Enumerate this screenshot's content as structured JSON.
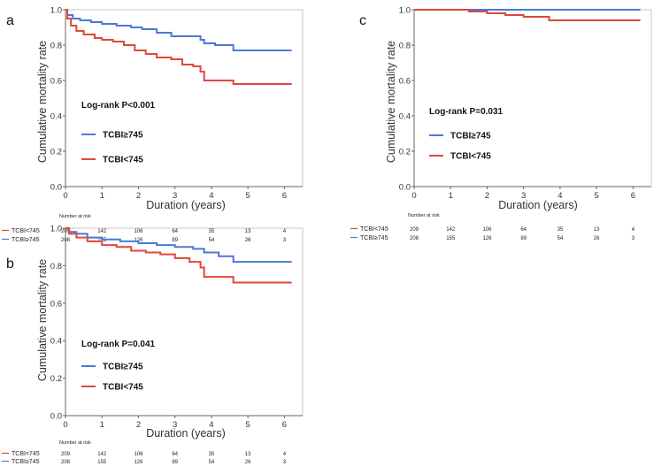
{
  "chart_data": [
    {
      "id": "a",
      "type": "line",
      "panel_label": "a",
      "xlabel": "Duration (years)",
      "ylabel": "Cumulative mortality rate",
      "xlim": [
        0,
        6.5
      ],
      "ylim": [
        0,
        1.0
      ],
      "xticks": [
        "0",
        "1",
        "2",
        "3",
        "4",
        "5",
        "6"
      ],
      "yticks": [
        "0.0",
        "0.2",
        "0.4",
        "0.6",
        "0.8",
        "1.0"
      ],
      "logrank": "Log-rank P<0.001",
      "series": [
        {
          "name": "TCBI≥745",
          "color": "#4a78d8",
          "x": [
            0,
            0.05,
            0.2,
            0.4,
            0.7,
            1.0,
            1.4,
            1.8,
            2.1,
            2.5,
            2.9,
            3.3,
            3.7,
            3.8,
            4.1,
            4.6,
            5.0,
            6.2
          ],
          "y": [
            1.0,
            0.97,
            0.95,
            0.94,
            0.93,
            0.92,
            0.91,
            0.9,
            0.89,
            0.87,
            0.85,
            0.85,
            0.83,
            0.81,
            0.8,
            0.77,
            0.77,
            0.77
          ]
        },
        {
          "name": "TCBI<745",
          "color": "#e0473a",
          "x": [
            0,
            0.05,
            0.15,
            0.3,
            0.5,
            0.8,
            1.0,
            1.3,
            1.6,
            1.9,
            2.2,
            2.5,
            2.9,
            3.2,
            3.5,
            3.7,
            3.8,
            4.2,
            4.6,
            5.0,
            6.2
          ],
          "y": [
            1.0,
            0.95,
            0.91,
            0.88,
            0.86,
            0.84,
            0.83,
            0.82,
            0.8,
            0.77,
            0.75,
            0.73,
            0.72,
            0.69,
            0.68,
            0.65,
            0.6,
            0.6,
            0.58,
            0.58,
            0.58
          ]
        }
      ],
      "risk_table": {
        "title": "Number at risk",
        "rows": [
          {
            "label": "TCBI<745",
            "color": "#e0473a",
            "values": [
              "209",
              "142",
              "106",
              "64",
              "35",
              "13",
              "4"
            ]
          },
          {
            "label": "TCBI≥745",
            "color": "#4a78d8",
            "values": [
              "208",
              "155",
              "126",
              "89",
              "54",
              "26",
              "3"
            ]
          }
        ]
      }
    },
    {
      "id": "b",
      "type": "line",
      "panel_label": "b",
      "xlabel": "Duration (years)",
      "ylabel": "Cumulative mortality rate",
      "xlim": [
        0,
        6.5
      ],
      "ylim": [
        0,
        1.0
      ],
      "xticks": [
        "0",
        "1",
        "2",
        "3",
        "4",
        "5",
        "6"
      ],
      "yticks": [
        "0.0",
        "0.2",
        "0.4",
        "0.6",
        "0.8",
        "1.0"
      ],
      "logrank": "Log-rank P=0.041",
      "series": [
        {
          "name": "TCBI≥745",
          "color": "#4a78d8",
          "x": [
            0,
            0.1,
            0.3,
            0.6,
            1.0,
            1.5,
            2.0,
            2.5,
            3.0,
            3.5,
            3.8,
            4.2,
            4.6,
            5.0,
            6.2
          ],
          "y": [
            1.0,
            0.98,
            0.97,
            0.95,
            0.94,
            0.93,
            0.92,
            0.91,
            0.9,
            0.89,
            0.87,
            0.85,
            0.82,
            0.82,
            0.82
          ]
        },
        {
          "name": "TCBI<745",
          "color": "#e0473a",
          "x": [
            0,
            0.1,
            0.3,
            0.6,
            1.0,
            1.4,
            1.8,
            2.2,
            2.6,
            3.0,
            3.4,
            3.7,
            3.8,
            4.2,
            4.6,
            5.0,
            6.2
          ],
          "y": [
            1.0,
            0.97,
            0.95,
            0.93,
            0.91,
            0.9,
            0.88,
            0.87,
            0.86,
            0.84,
            0.82,
            0.79,
            0.74,
            0.74,
            0.71,
            0.71,
            0.71
          ]
        }
      ],
      "risk_table": {
        "title": "Number at risk",
        "rows": [
          {
            "label": "TCBI<745",
            "color": "#e0473a",
            "values": [
              "209",
              "142",
              "106",
              "64",
              "35",
              "13",
              "4"
            ]
          },
          {
            "label": "TCBI≥745",
            "color": "#4a78d8",
            "values": [
              "208",
              "155",
              "126",
              "89",
              "54",
              "26",
              "3"
            ]
          }
        ]
      }
    },
    {
      "id": "c",
      "type": "line",
      "panel_label": "c",
      "xlabel": "Duration (years)",
      "ylabel": "Cumulative mortality rate",
      "xlim": [
        0,
        6.5
      ],
      "ylim": [
        0,
        1.0
      ],
      "xticks": [
        "0",
        "1",
        "2",
        "3",
        "4",
        "5",
        "6"
      ],
      "yticks": [
        "0.0",
        "0.2",
        "0.4",
        "0.6",
        "0.8",
        "1.0"
      ],
      "logrank": "Log-rank P=0.031",
      "series": [
        {
          "name": "TCBI≥745",
          "color": "#4a78d8",
          "x": [
            0,
            1.5,
            2.5,
            6.2
          ],
          "y": [
            1.0,
            1.0,
            1.0,
            1.0
          ]
        },
        {
          "name": "TCBI<745",
          "color": "#e0473a",
          "x": [
            0,
            1.0,
            1.5,
            2.0,
            2.5,
            3.0,
            3.7,
            4.6,
            6.2
          ],
          "y": [
            1.0,
            1.0,
            0.99,
            0.98,
            0.97,
            0.96,
            0.94,
            0.94,
            0.94
          ]
        }
      ],
      "risk_table": {
        "title": "Number at risk",
        "rows": [
          {
            "label": "TCBI<745",
            "color": "#e0473a",
            "values": [
              "209",
              "142",
              "106",
              "64",
              "35",
              "13",
              "4"
            ]
          },
          {
            "label": "TCBI≥745",
            "color": "#4a78d8",
            "values": [
              "208",
              "155",
              "126",
              "89",
              "54",
              "26",
              "3"
            ]
          }
        ]
      }
    }
  ]
}
